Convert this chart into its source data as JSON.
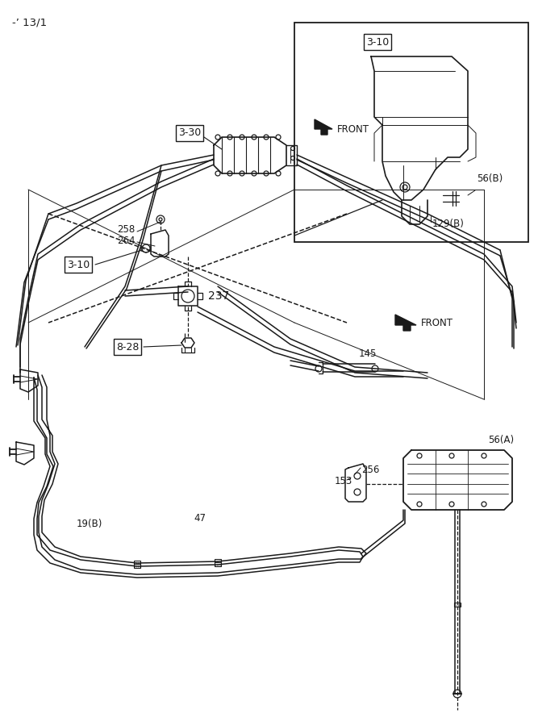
{
  "bg_color": "#ffffff",
  "line_color": "#1a1a1a",
  "lw": 1.1,
  "fig_w": 6.67,
  "fig_h": 9.0,
  "dpi": 100,
  "page_id": "-’ 13/1",
  "labels": {
    "page_id": "-’ 13/1",
    "part_330": "3-30",
    "part_310_main": "3-10",
    "part_310_inset": "3-10",
    "part_828": "8-28",
    "part_258": "258",
    "part_264": "264",
    "part_237": "237",
    "part_145": "145",
    "part_47": "47",
    "part_19b": "19(B)",
    "part_56a": "56(A)",
    "part_56b": "56(B)",
    "part_129b": "129(B)",
    "part_153": "153",
    "part_256": "256",
    "front_main": "FRONT",
    "front_inset": "FRONT"
  }
}
